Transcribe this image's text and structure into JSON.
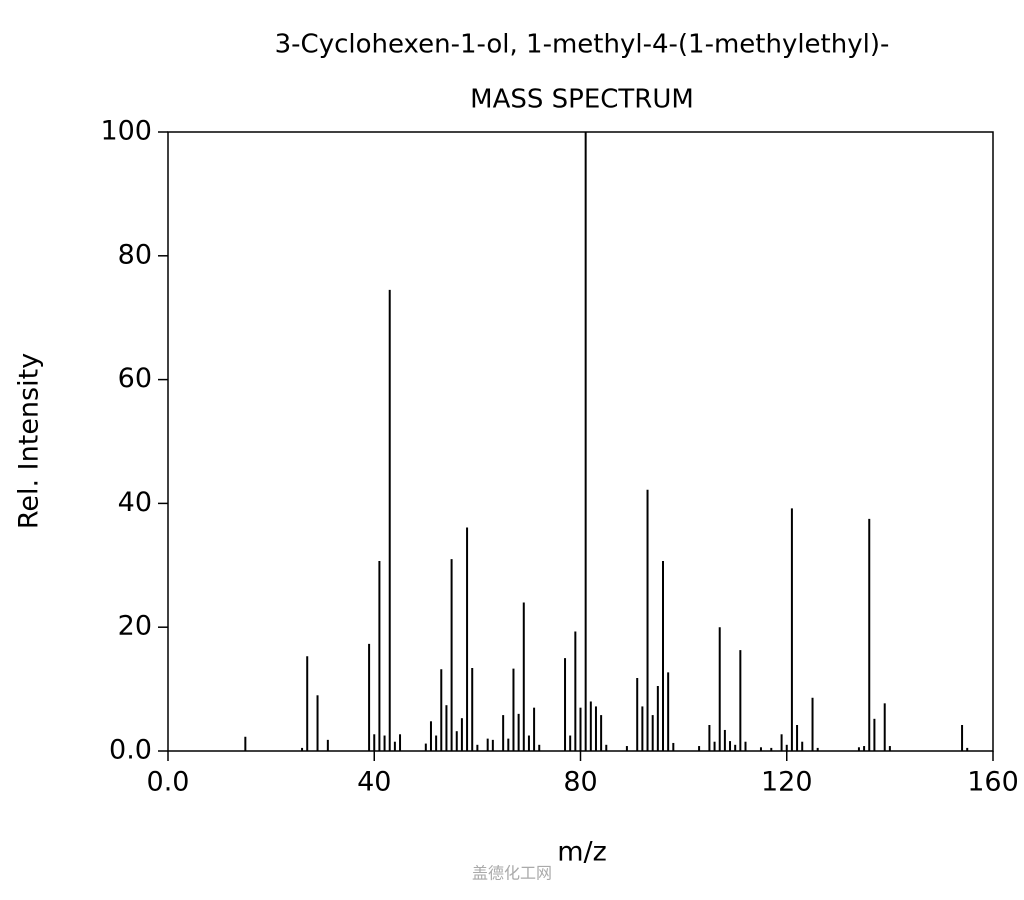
{
  "chart_data": {
    "type": "bar",
    "title": "3-Cyclohexen-1-ol, 1-methyl-4-(1-methylethyl)-",
    "subtitle": "MASS SPECTRUM",
    "x_label": "m/z",
    "y_label": "Rel. Intensity",
    "watermark": "盖德化工网",
    "color": "#000000",
    "xlim": [
      0,
      160
    ],
    "ylim": [
      0,
      100
    ],
    "xticks": [
      {
        "value": 0,
        "label": "0.0"
      },
      40,
      80,
      120,
      160
    ],
    "yticks": [
      {
        "value": 0,
        "label": "0.0"
      },
      20,
      40,
      60,
      80,
      100
    ],
    "x": [
      15,
      26,
      27,
      29,
      31,
      39,
      40,
      41,
      42,
      43,
      44,
      45,
      50,
      51,
      52,
      53,
      54,
      55,
      56,
      57,
      58,
      59,
      60,
      62,
      63,
      65,
      66,
      67,
      68,
      69,
      70,
      71,
      72,
      77,
      78,
      79,
      80,
      81,
      82,
      83,
      84,
      85,
      89,
      91,
      92,
      93,
      94,
      95,
      96,
      97,
      98,
      103,
      105,
      106,
      107,
      108,
      109,
      110,
      111,
      112,
      115,
      117,
      119,
      120,
      121,
      122,
      123,
      125,
      126,
      134,
      135,
      136,
      137,
      139,
      140,
      154,
      155
    ],
    "values": [
      2.3,
      0.5,
      15.3,
      9.0,
      1.8,
      17.3,
      2.7,
      30.7,
      2.5,
      74.5,
      1.5,
      2.7,
      1.2,
      4.8,
      2.5,
      13.2,
      7.4,
      31.0,
      3.2,
      5.3,
      36.1,
      13.4,
      1.0,
      2.0,
      1.8,
      5.8,
      2.0,
      13.3,
      6.0,
      24.0,
      2.5,
      7.0,
      1.0,
      15.0,
      2.5,
      19.3,
      7.0,
      100,
      8.0,
      7.2,
      5.8,
      1.0,
      0.8,
      11.8,
      7.2,
      42.2,
      5.8,
      10.5,
      30.7,
      12.7,
      1.3,
      0.8,
      4.2,
      1.5,
      20.0,
      3.4,
      1.6,
      1.0,
      16.3,
      1.5,
      0.6,
      0.5,
      2.7,
      1.0,
      39.2,
      4.2,
      1.5,
      8.6,
      0.5,
      0.6,
      0.8,
      37.5,
      5.2,
      7.7,
      0.8,
      4.2,
      0.5
    ]
  }
}
